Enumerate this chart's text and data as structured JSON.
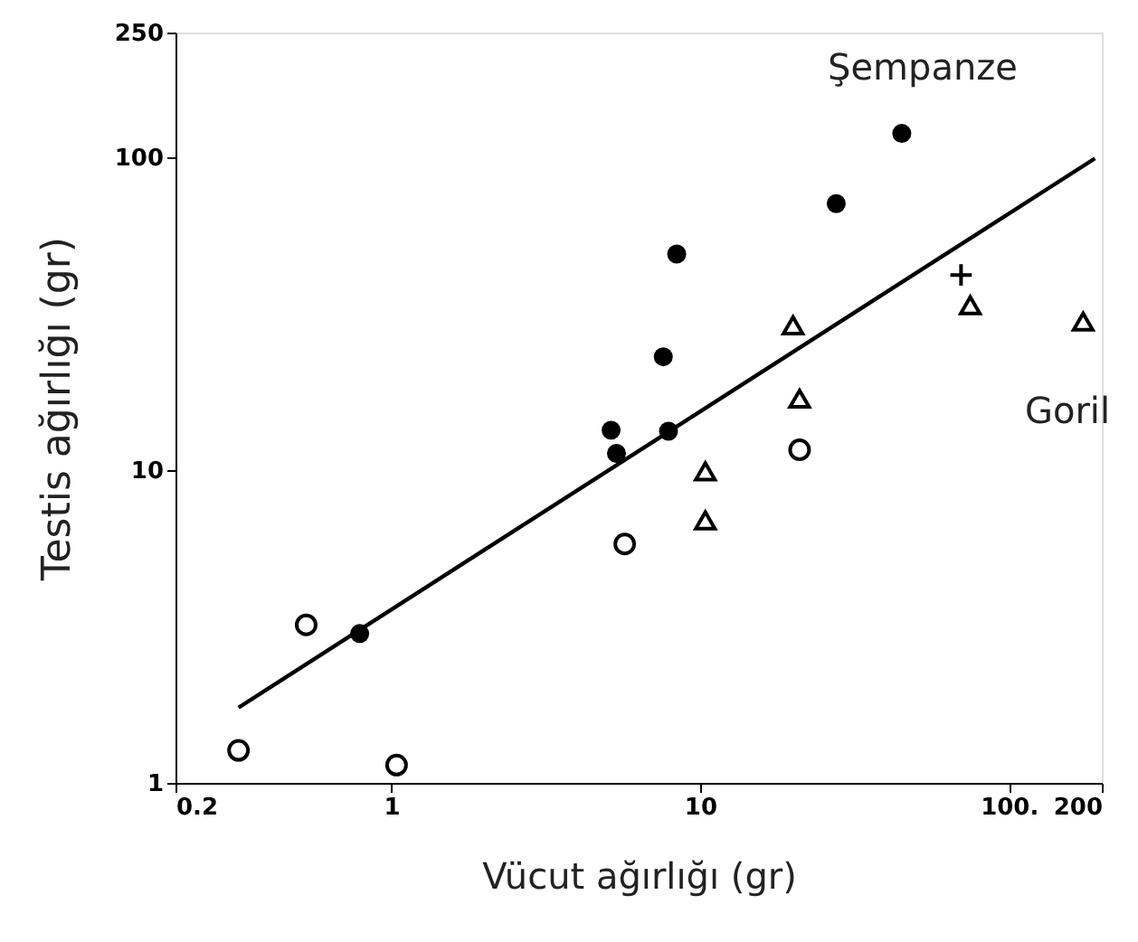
{
  "chart_data": {
    "type": "scatter",
    "xlabel": "Vücut ağırlığı (gr)",
    "ylabel": "Testis ağırlığı (gr)",
    "log": "xy",
    "grid": false,
    "xlim": [
      0.2,
      200
    ],
    "xticks": [
      0.2,
      1,
      10,
      {
        "value": 100,
        "label": "100."
      },
      200
    ],
    "ylim": [
      1,
      250
    ],
    "yticks": [
      1,
      10,
      100,
      250
    ],
    "series": [
      {
        "marker": "circle",
        "color": "#000000",
        "x": [
          0.79,
          5.15,
          5.36,
          7.9,
          7.6,
          8.4,
          27.6,
          45
        ],
        "values": [
          3.0,
          13.4,
          11.3,
          13.3,
          23,
          49,
          71,
          119
        ]
      },
      {
        "marker": "circle",
        "color": "#000000",
        "x": [
          0.32,
          0.53,
          1.04,
          5.7,
          21
        ],
        "values": [
          1.27,
          3.2,
          1.14,
          5.8,
          11.6
        ]
      },
      {
        "marker": "triangle",
        "color": "#000000",
        "x": [
          10.4,
          10.4,
          20,
          21,
          75,
          174
        ],
        "values": [
          9.9,
          6.9,
          29,
          16.9,
          33.6,
          29.8
        ]
      },
      {
        "marker": "cross",
        "color": "#000000",
        "x": [
          70
        ],
        "values": [
          42
        ]
      },
      {
        "type": "line",
        "line_style": "solid",
        "color": "#000000",
        "x": [
          0.32,
          190
        ],
        "values": [
          1.74,
          99
        ]
      }
    ],
    "annotations": [
      "Şempanze",
      "Goril"
    ]
  }
}
